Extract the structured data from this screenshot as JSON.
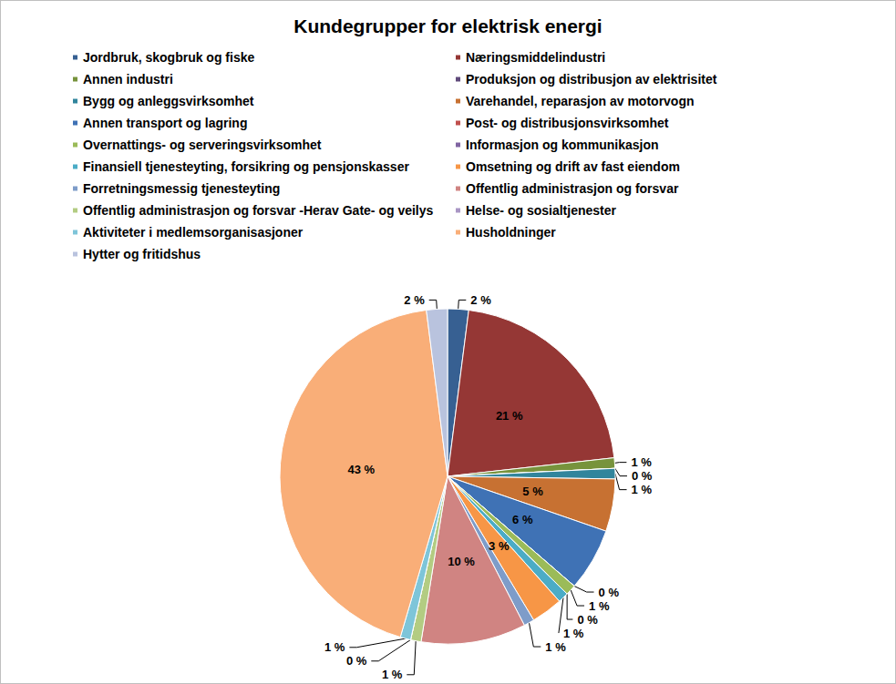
{
  "chart_data": {
    "type": "pie",
    "title": "Kundegrupper for elektrisk energi",
    "categories": [
      "Jordbruk, skogbruk og fiske",
      "Næringsmiddelindustri",
      "Annen industri",
      "Produksjon og distribusjon av elektrisitet",
      "Bygg og anleggsvirksomhet",
      "Varehandel, reparasjon av motorvogn",
      "Annen transport og lagring",
      "Post- og distribusjonsvirksomhet",
      "Overnattings- og serveringsvirksomhet",
      "Informasjon og kommunikasjon",
      "Finansiell tjenesteyting, forsikring og pensjonskasser",
      "Omsetning og drift av fast eiendom",
      "Forretningsmessig tjenesteyting",
      "Offentlig administrasjon og forsvar",
      "Offentlig administrasjon og forsvar -Herav Gate- og veilys",
      "Helse- og sosialtjenester",
      "Aktiviteter i medlemsorganisasjoner",
      "Husholdninger",
      "Hytter og fritidshus"
    ],
    "values": [
      2,
      21,
      1,
      0,
      1,
      5,
      6,
      0,
      1,
      0,
      1,
      3,
      1,
      10,
      1,
      0,
      1,
      43,
      2
    ],
    "value_labels": [
      "2 %",
      "21 %",
      "1 %",
      "0 %",
      "1 %",
      "5 %",
      "6 %",
      "0 %",
      "1 %",
      "0 %",
      "1 %",
      "3 %",
      "1 %",
      "10 %",
      "1 %",
      "0 %",
      "1 %",
      "43 %",
      "2 %"
    ],
    "colors": [
      "#376092",
      "#953735",
      "#77933C",
      "#604A7B",
      "#31859C",
      "#C77132",
      "#3F72B5",
      "#C0504D",
      "#9BBB59",
      "#8064A2",
      "#4BACC6",
      "#F79646",
      "#7E9CC9",
      "#D08482",
      "#B3CC82",
      "#A996C4",
      "#7EC5D9",
      "#F9AE78",
      "#B9C3DE"
    ],
    "data_labels": true,
    "legend": "top"
  }
}
